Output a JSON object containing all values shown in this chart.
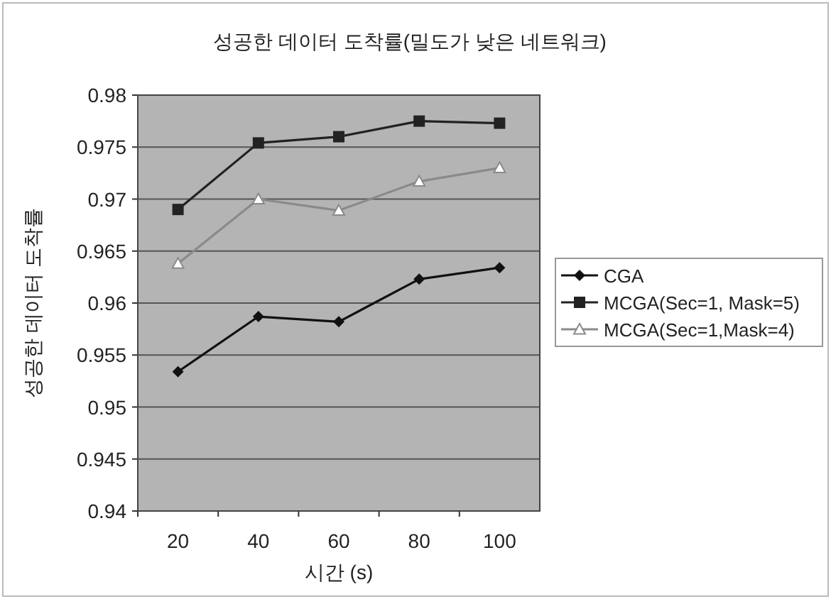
{
  "chart_data": {
    "type": "line",
    "title": "성공한 데이터 도착률(밀도가 낮은 네트워크)",
    "xlabel": "시간 (s)",
    "ylabel": "성공한 데이터 도착률",
    "categories": [
      "20",
      "40",
      "60",
      "80",
      "100"
    ],
    "series": [
      {
        "name": "CGA",
        "color": "#111111",
        "marker": "diamond",
        "values": [
          0.9534,
          0.9587,
          0.9582,
          0.9623,
          0.9634
        ]
      },
      {
        "name": "MCGA(Sec=1, Mask=5)",
        "color": "#222222",
        "marker": "square",
        "values": [
          0.969,
          0.9754,
          0.976,
          0.9775,
          0.9773
        ]
      },
      {
        "name": "MCGA(Sec=1,Mask=4)",
        "color": "#8a8a8a",
        "marker": "triangle",
        "values": [
          0.9638,
          0.97,
          0.9689,
          0.9717,
          0.973
        ]
      }
    ],
    "ylim": [
      0.94,
      0.98
    ],
    "yticks": [
      0.94,
      0.945,
      0.95,
      0.955,
      0.96,
      0.965,
      0.97,
      0.975,
      0.98
    ],
    "grid": "y",
    "legend": "right",
    "line_style": "solid"
  }
}
